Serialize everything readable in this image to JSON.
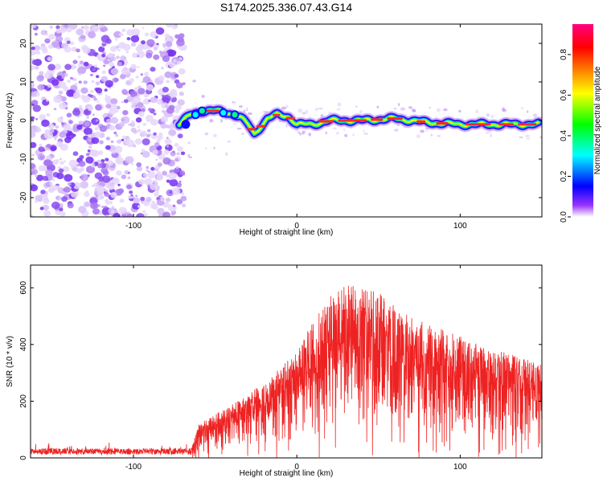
{
  "title": "S174.2025.336.07.43.G14",
  "chart_data": [
    {
      "type": "heatmap",
      "title": "S174.2025.336.07.43.G14",
      "xlabel": "Height of straight line (km)",
      "ylabel": "Frequency (Hz)",
      "xlim": [
        -163,
        150
      ],
      "ylim": [
        -25,
        25
      ],
      "x_ticks": [
        -100,
        0,
        100
      ],
      "y_ticks": [
        -20,
        -10,
        0,
        10,
        20
      ],
      "noise_region_x": [
        -163,
        -72
      ],
      "colorbar": {
        "label": "Normalized spectral amplitude",
        "range": [
          0,
          0.95
        ],
        "ticks": [
          0.0,
          0.2,
          0.4,
          0.6,
          0.8
        ],
        "colormap": [
          "#ffffff",
          "#7f00ff",
          "#0000ff",
          "#00ffff",
          "#00ff00",
          "#ffff00",
          "#ff7f00",
          "#ff0000",
          "#ff0080"
        ]
      },
      "ridge": {
        "x": [
          -72,
          -65,
          -58,
          -50,
          -42,
          -35,
          -30,
          -26,
          -22,
          -18,
          -12,
          -5,
          0,
          10,
          20,
          40,
          60,
          80,
          100,
          120,
          140,
          148
        ],
        "y": [
          -1,
          1.5,
          2.5,
          2.5,
          2,
          1,
          -1,
          -3.5,
          -1.5,
          0.5,
          1.5,
          1,
          -1,
          -1,
          0,
          0,
          0.5,
          -0.5,
          -1,
          -1,
          -1,
          -1
        ]
      }
    },
    {
      "type": "line",
      "xlabel": "Height of straight line (km)",
      "ylabel": "SNR (10 * v/v)",
      "xlim": [
        -163,
        150
      ],
      "ylim": [
        0,
        680
      ],
      "x_ticks": [
        -100,
        0,
        100
      ],
      "y_ticks": [
        0,
        200,
        400,
        600
      ],
      "color": "#ee2222",
      "envelope": {
        "x": [
          -163,
          -65,
          -60,
          -40,
          -20,
          0,
          10,
          20,
          30,
          50,
          70,
          100,
          120,
          150
        ],
        "y": [
          22,
          25,
          110,
          170,
          240,
          340,
          440,
          520,
          560,
          530,
          450,
          390,
          350,
          300
        ]
      }
    }
  ]
}
